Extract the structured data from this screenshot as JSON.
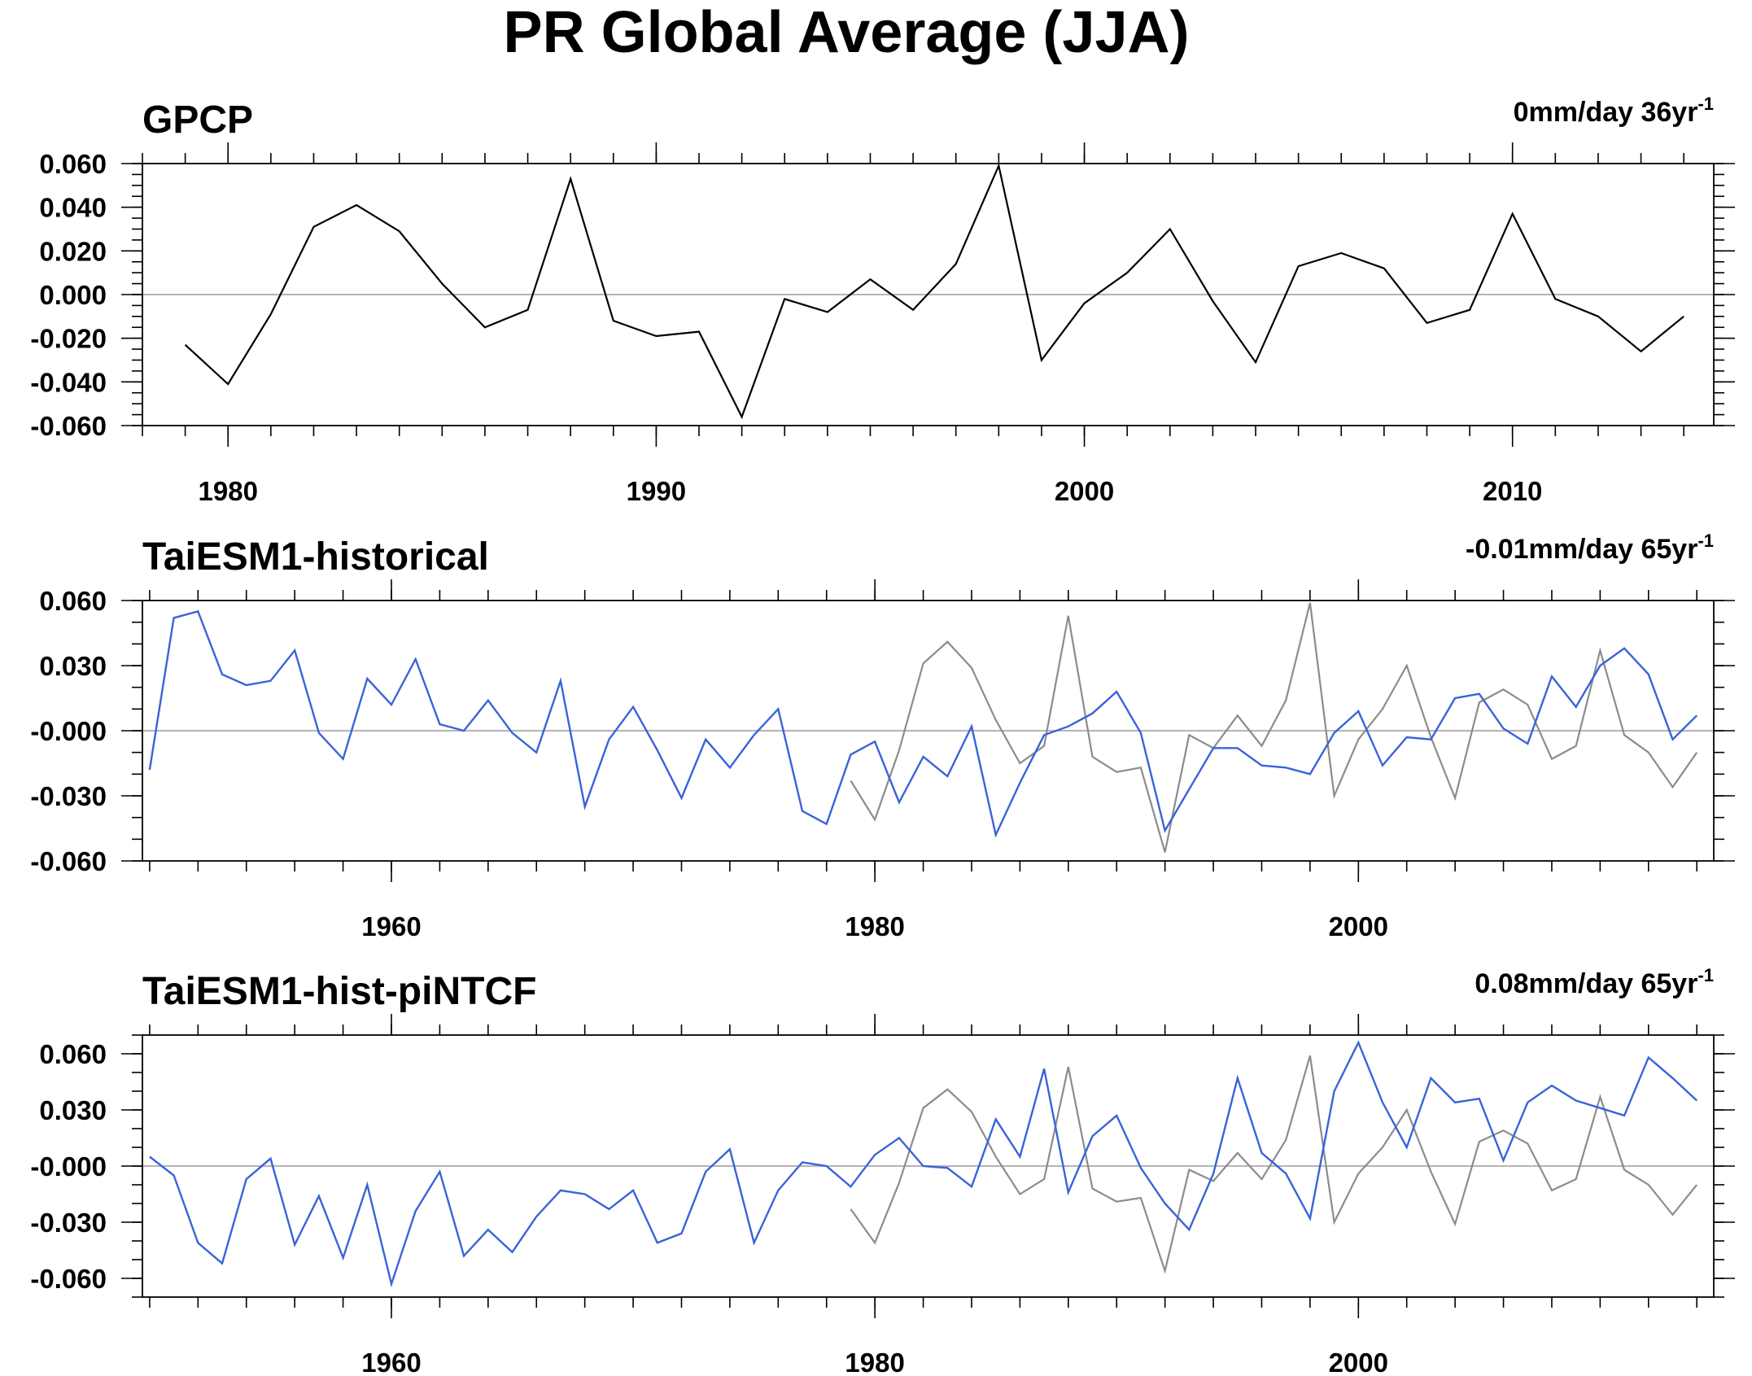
{
  "title": "PR Global Average (JJA)",
  "colors": {
    "model": "#3a63d8",
    "obs_overlay": "#8c8c8c",
    "obs": "#000000",
    "zero_line": "#b4b4b4",
    "frame": "#000000"
  },
  "chart_data": [
    {
      "type": "line",
      "title": "GPCP",
      "trend_value": "0mm/day 36yr",
      "trend_exp": "-1",
      "xlim": [
        1978.0,
        2014.7
      ],
      "ylim": [
        -0.06,
        0.06
      ],
      "yticks": [
        0.06,
        0.04,
        0.02,
        0.0,
        -0.02,
        -0.04,
        -0.06
      ],
      "ytick_labels": [
        "0.060",
        "0.040",
        "0.020",
        "0.000",
        "-0.020",
        "-0.040",
        "-0.060"
      ],
      "yminor_step": 0.005,
      "xticks": [
        1980,
        1990,
        2000,
        2010
      ],
      "xtick_labels": [
        "1980",
        "1990",
        "2000",
        "2010"
      ],
      "xminor_step": 1,
      "grid": false,
      "zero_line": true,
      "series": [
        {
          "role": "obs",
          "x_start": 1979,
          "values": [
            -0.023,
            -0.041,
            -0.009,
            0.031,
            0.041,
            0.029,
            0.005,
            -0.015,
            -0.007,
            0.053,
            -0.012,
            -0.019,
            -0.017,
            -0.056,
            -0.002,
            -0.008,
            0.007,
            -0.007,
            0.014,
            0.059,
            -0.03,
            -0.004,
            0.01,
            0.03,
            -0.003,
            -0.031,
            0.013,
            0.019,
            0.012,
            -0.013,
            -0.007,
            0.037,
            -0.002,
            -0.01,
            -0.026,
            -0.01
          ]
        }
      ]
    },
    {
      "type": "line",
      "title": "TaiESM1-historical",
      "trend_value": "-0.01mm/day 65yr",
      "trend_exp": "-1",
      "xlim": [
        1949.7,
        2014.7
      ],
      "ylim": [
        -0.06,
        0.06
      ],
      "yticks": [
        0.06,
        0.03,
        0.0,
        -0.03,
        -0.06
      ],
      "ytick_labels": [
        "0.060",
        "0.030",
        "-0.000",
        "-0.030",
        "-0.060"
      ],
      "yminor_step": 0.01,
      "xticks": [
        1960,
        1980,
        2000
      ],
      "xtick_labels": [
        "1960",
        "1980",
        "2000"
      ],
      "xminor_step": 2,
      "grid": false,
      "zero_line": true,
      "series": [
        {
          "role": "model",
          "x_start": 1950,
          "values": [
            -0.018,
            0.052,
            0.055,
            0.026,
            0.021,
            0.023,
            0.037,
            -0.001,
            -0.013,
            0.024,
            0.012,
            0.033,
            0.003,
            0.0,
            0.014,
            -0.001,
            -0.01,
            0.023,
            -0.035,
            -0.004,
            0.011,
            -0.009,
            -0.031,
            -0.004,
            -0.017,
            -0.002,
            0.01,
            -0.037,
            -0.043,
            -0.011,
            -0.005,
            -0.033,
            -0.012,
            -0.021,
            0.002,
            -0.048,
            -0.024,
            -0.002,
            0.002,
            0.008,
            0.018,
            -0.001,
            -0.046,
            -0.027,
            -0.008,
            -0.008,
            -0.016,
            -0.017,
            -0.02,
            -0.001,
            0.009,
            -0.016,
            -0.003,
            -0.004,
            0.015,
            0.017,
            0.001,
            -0.006,
            0.025,
            0.011,
            0.03,
            0.038,
            0.026,
            -0.004,
            0.007
          ]
        },
        {
          "role": "obs_overlay",
          "x_start": 1979,
          "values": [
            -0.023,
            -0.041,
            -0.009,
            0.031,
            0.041,
            0.029,
            0.005,
            -0.015,
            -0.007,
            0.053,
            -0.012,
            -0.019,
            -0.017,
            -0.056,
            -0.002,
            -0.008,
            0.007,
            -0.007,
            0.014,
            0.059,
            -0.03,
            -0.004,
            0.01,
            0.03,
            -0.003,
            -0.031,
            0.013,
            0.019,
            0.012,
            -0.013,
            -0.007,
            0.037,
            -0.002,
            -0.01,
            -0.026,
            -0.01
          ]
        }
      ]
    },
    {
      "type": "line",
      "title": "TaiESM1-hist-piNTCF",
      "trend_value": "0.08mm/day 65yr",
      "trend_exp": "-1",
      "xlim": [
        1949.7,
        2014.7
      ],
      "ylim": [
        -0.07,
        0.07
      ],
      "yticks": [
        0.06,
        0.03,
        0.0,
        -0.03,
        -0.06
      ],
      "ytick_labels": [
        "0.060",
        "0.030",
        "-0.000",
        "-0.030",
        "-0.060"
      ],
      "yminor_step": 0.01,
      "xticks": [
        1960,
        1980,
        2000
      ],
      "xtick_labels": [
        "1960",
        "1980",
        "2000"
      ],
      "xminor_step": 2,
      "grid": false,
      "zero_line": true,
      "series": [
        {
          "role": "model",
          "x_start": 1950,
          "values": [
            0.005,
            -0.005,
            -0.041,
            -0.052,
            -0.007,
            0.004,
            -0.042,
            -0.016,
            -0.049,
            -0.01,
            -0.063,
            -0.024,
            -0.003,
            -0.048,
            -0.034,
            -0.046,
            -0.027,
            -0.013,
            -0.015,
            -0.023,
            -0.013,
            -0.041,
            -0.036,
            -0.003,
            0.009,
            -0.041,
            -0.013,
            0.002,
            0.0,
            -0.011,
            0.006,
            0.015,
            0.0,
            -0.001,
            -0.011,
            0.025,
            0.005,
            0.052,
            -0.014,
            0.016,
            0.027,
            -0.001,
            -0.02,
            -0.034,
            -0.004,
            0.047,
            0.007,
            -0.004,
            -0.028,
            0.04,
            0.066,
            0.034,
            0.01,
            0.047,
            0.034,
            0.036,
            0.003,
            0.034,
            0.043,
            0.035,
            0.031,
            0.027,
            0.058,
            0.047,
            0.035
          ]
        },
        {
          "role": "obs_overlay",
          "x_start": 1979,
          "values": [
            -0.023,
            -0.041,
            -0.009,
            0.031,
            0.041,
            0.029,
            0.005,
            -0.015,
            -0.007,
            0.053,
            -0.012,
            -0.019,
            -0.017,
            -0.056,
            -0.002,
            -0.008,
            0.007,
            -0.007,
            0.014,
            0.059,
            -0.03,
            -0.004,
            0.01,
            0.03,
            -0.003,
            -0.031,
            0.013,
            0.019,
            0.012,
            -0.013,
            -0.007,
            0.037,
            -0.002,
            -0.01,
            -0.026,
            -0.01
          ]
        }
      ]
    }
  ]
}
